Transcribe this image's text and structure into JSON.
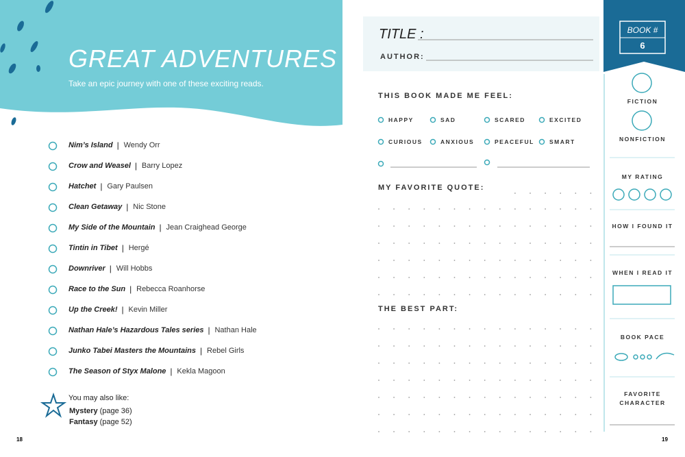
{
  "left": {
    "title": "GREAT ADVENTURES",
    "subtitle": "Take an epic journey with one of these exciting reads.",
    "books": [
      {
        "title": "Nim’s Island",
        "author": "Wendy Orr"
      },
      {
        "title": "Crow and Weasel",
        "author": "Barry Lopez"
      },
      {
        "title": "Hatchet",
        "author": "Gary Paulsen"
      },
      {
        "title": "Clean Getaway",
        "author": "Nic Stone"
      },
      {
        "title": "My Side of the Mountain",
        "author": "Jean Craighead George"
      },
      {
        "title": "Tintin in Tibet",
        "author": "Hergé"
      },
      {
        "title": "Downriver",
        "author": "Will Hobbs"
      },
      {
        "title": "Race to the Sun",
        "author": "Rebecca Roanhorse"
      },
      {
        "title": "Up the Creek!",
        "author": "Kevin Miller"
      },
      {
        "title": "Nathan Hale’s Hazardous Tales series",
        "author": "Nathan Hale"
      },
      {
        "title": "Junko Tabei Masters the Mountains",
        "author": "Rebel Girls"
      },
      {
        "title": "The Season of Styx Malone",
        "author": "Kekla Magoon"
      }
    ],
    "also_like": {
      "heading": "You may also like:",
      "items": [
        {
          "title": "Mystery",
          "page": "(page 36)"
        },
        {
          "title": "Fantasy",
          "page": "(page 52)"
        }
      ]
    },
    "page_number": "18"
  },
  "right": {
    "title_label": "TITLE :",
    "author_label": "AUTHOR:",
    "book_number_label": "BOOK #",
    "book_number": "6",
    "feel_heading": "THIS BOOK MADE ME FEEL:",
    "feelings": [
      "HAPPY",
      "SAD",
      "SCARED",
      "EXCITED",
      "CURIOUS",
      "ANXIOUS",
      "PEACEFUL",
      "SMART"
    ],
    "quote_heading": "MY FAVORITE QUOTE:",
    "best_part_heading": "THE BEST PART:",
    "sidebar": {
      "fiction": "FICTION",
      "nonfiction": "NONFICTION",
      "rating": "MY RATING",
      "how_found": "HOW I FOUND IT",
      "when_read": "WHEN I READ IT",
      "pace": "BOOK PACE",
      "favorite_character": "FAVORITE CHARACTER"
    },
    "page_number": "19"
  }
}
